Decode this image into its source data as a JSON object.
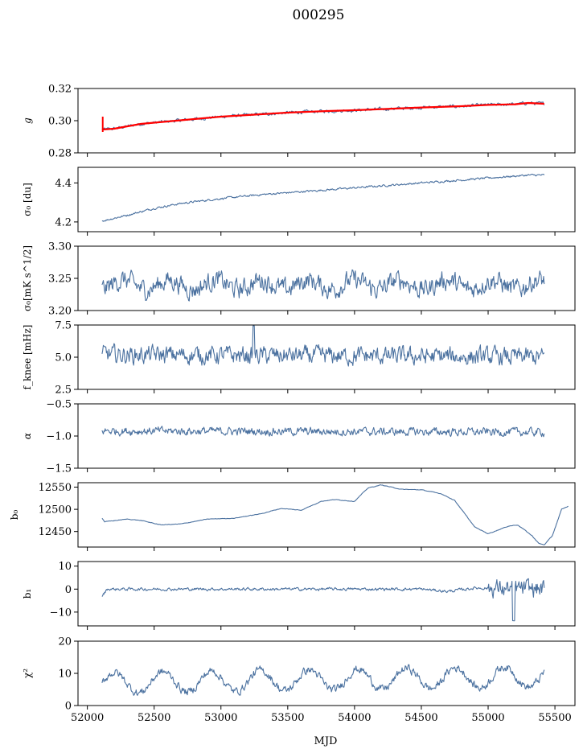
{
  "title": "000295",
  "xlabel": "MJD",
  "chart_data": {
    "type": "line",
    "x_range": [
      52110,
      55420
    ],
    "xlim": [
      51930,
      55650
    ],
    "xticks": [
      52000,
      52500,
      53000,
      53500,
      54000,
      54500,
      55000,
      55500
    ],
    "xtick_labels": [
      "52000",
      "52500",
      "53000",
      "53500",
      "54000",
      "54500",
      "55000",
      "55500"
    ],
    "panels": [
      {
        "id": "g",
        "ylabel": "g",
        "ylim": [
          0.28,
          0.32
        ],
        "yticks": [
          0.28,
          0.3,
          0.32
        ],
        "ytick_labels": [
          "0.28",
          "0.30",
          "0.32"
        ],
        "series_blue": [
          [
            52110,
            0.2945
          ],
          [
            52200,
            0.295
          ],
          [
            52400,
            0.298
          ],
          [
            52600,
            0.2995
          ],
          [
            52800,
            0.301
          ],
          [
            53000,
            0.3025
          ],
          [
            53200,
            0.3035
          ],
          [
            53500,
            0.305
          ],
          [
            53800,
            0.306
          ],
          [
            54000,
            0.3065
          ],
          [
            54300,
            0.3075
          ],
          [
            54500,
            0.3082
          ],
          [
            54800,
            0.309
          ],
          [
            55000,
            0.3098
          ],
          [
            55200,
            0.3102
          ],
          [
            55300,
            0.311
          ],
          [
            55420,
            0.3105
          ]
        ],
        "series_red": [
          [
            52110,
            0.2945
          ],
          [
            52200,
            0.295
          ],
          [
            52400,
            0.298
          ],
          [
            52600,
            0.2995
          ],
          [
            52800,
            0.301
          ],
          [
            53000,
            0.3025
          ],
          [
            53200,
            0.3035
          ],
          [
            53500,
            0.305
          ],
          [
            53800,
            0.306
          ],
          [
            54000,
            0.3065
          ],
          [
            54300,
            0.3075
          ],
          [
            54500,
            0.3082
          ],
          [
            54800,
            0.309
          ],
          [
            55000,
            0.3098
          ],
          [
            55200,
            0.3102
          ],
          [
            55300,
            0.311
          ],
          [
            55420,
            0.3105
          ]
        ],
        "noise": 0.0008
      },
      {
        "id": "sigma0_du",
        "ylabel": "σ₀ [du]",
        "ylim": [
          4.15,
          4.48
        ],
        "yticks": [
          4.2,
          4.4
        ],
        "ytick_labels": [
          "4.2",
          "4.4"
        ],
        "series_blue": [
          [
            52110,
            4.205
          ],
          [
            52300,
            4.235
          ],
          [
            52500,
            4.27
          ],
          [
            52700,
            4.295
          ],
          [
            53000,
            4.32
          ],
          [
            53300,
            4.34
          ],
          [
            53600,
            4.355
          ],
          [
            54000,
            4.375
          ],
          [
            54300,
            4.39
          ],
          [
            54600,
            4.405
          ],
          [
            55000,
            4.425
          ],
          [
            55300,
            4.44
          ],
          [
            55420,
            4.44
          ]
        ],
        "noise": 0.004
      },
      {
        "id": "sigma0_mk",
        "ylabel": "σ₀[mK s^1/2]",
        "ylim": [
          3.2,
          3.3
        ],
        "yticks": [
          3.2,
          3.25,
          3.3
        ],
        "ytick_labels": [
          "3.20",
          "3.25",
          "3.30"
        ],
        "series_blue": [
          [
            52110,
            3.24
          ],
          [
            55420,
            3.24
          ]
        ],
        "noise": 0.012
      },
      {
        "id": "fknee",
        "ylabel": "f_knee [mHz]",
        "ylim": [
          2.5,
          7.5
        ],
        "yticks": [
          2.5,
          5.0,
          7.5
        ],
        "ytick_labels": [
          "2.5",
          "5.0",
          "7.5"
        ],
        "series_blue": [
          [
            52110,
            5.2
          ],
          [
            55420,
            5.0
          ]
        ],
        "noise": 0.55
      },
      {
        "id": "alpha",
        "ylabel": "α",
        "ylim": [
          -1.5,
          -0.5
        ],
        "yticks": [
          -1.5,
          -1.0,
          -0.5
        ],
        "ytick_labels": [
          "−1.5",
          "−1.0",
          "−0.5"
        ],
        "series_blue": [
          [
            52110,
            -0.92
          ],
          [
            55420,
            -0.94
          ]
        ],
        "noise": 0.05
      },
      {
        "id": "b0",
        "ylabel": "b₀",
        "ylim": [
          12415,
          12560
        ],
        "yticks": [
          12450,
          12500,
          12550
        ],
        "ytick_labels": [
          "12450",
          "12500",
          "12550"
        ],
        "series_blue": [
          [
            52110,
            12480
          ],
          [
            52130,
            12472
          ],
          [
            52300,
            12478
          ],
          [
            52400,
            12475
          ],
          [
            52550,
            12465
          ],
          [
            52700,
            12467
          ],
          [
            52900,
            12478
          ],
          [
            53100,
            12480
          ],
          [
            53300,
            12490
          ],
          [
            53450,
            12502
          ],
          [
            53600,
            12498
          ],
          [
            53750,
            12518
          ],
          [
            53850,
            12522
          ],
          [
            54000,
            12518
          ],
          [
            54100,
            12548
          ],
          [
            54200,
            12555
          ],
          [
            54350,
            12545
          ],
          [
            54500,
            12544
          ],
          [
            54650,
            12535
          ],
          [
            54750,
            12520
          ],
          [
            54900,
            12460
          ],
          [
            55000,
            12445
          ],
          [
            55150,
            12462
          ],
          [
            55220,
            12465
          ],
          [
            55280,
            12452
          ],
          [
            55330,
            12440
          ],
          [
            55380,
            12423
          ],
          [
            55420,
            12420
          ],
          [
            55480,
            12440
          ],
          [
            55550,
            12500
          ],
          [
            55600,
            12507
          ]
        ],
        "noise": 0.5
      },
      {
        "id": "b1",
        "ylabel": "b₁",
        "ylim": [
          -16,
          12
        ],
        "yticks": [
          -10,
          0,
          10
        ],
        "ytick_labels": [
          "−10",
          "0",
          "10"
        ],
        "series_blue": [
          [
            52110,
            -3
          ],
          [
            52150,
            0
          ],
          [
            54500,
            0
          ],
          [
            54700,
            -1
          ],
          [
            54900,
            0.5
          ],
          [
            55420,
            0
          ]
        ],
        "noise": 0.5
      },
      {
        "id": "chi2",
        "ylabel": "χ²",
        "ylim": [
          0,
          20
        ],
        "yticks": [
          0,
          10,
          20
        ],
        "ytick_labels": [
          "0",
          "10",
          "20"
        ],
        "series_blue": [
          [
            52110,
            7
          ],
          [
            55420,
            9
          ]
        ],
        "noise": 1.0,
        "period": 365
      }
    ]
  }
}
